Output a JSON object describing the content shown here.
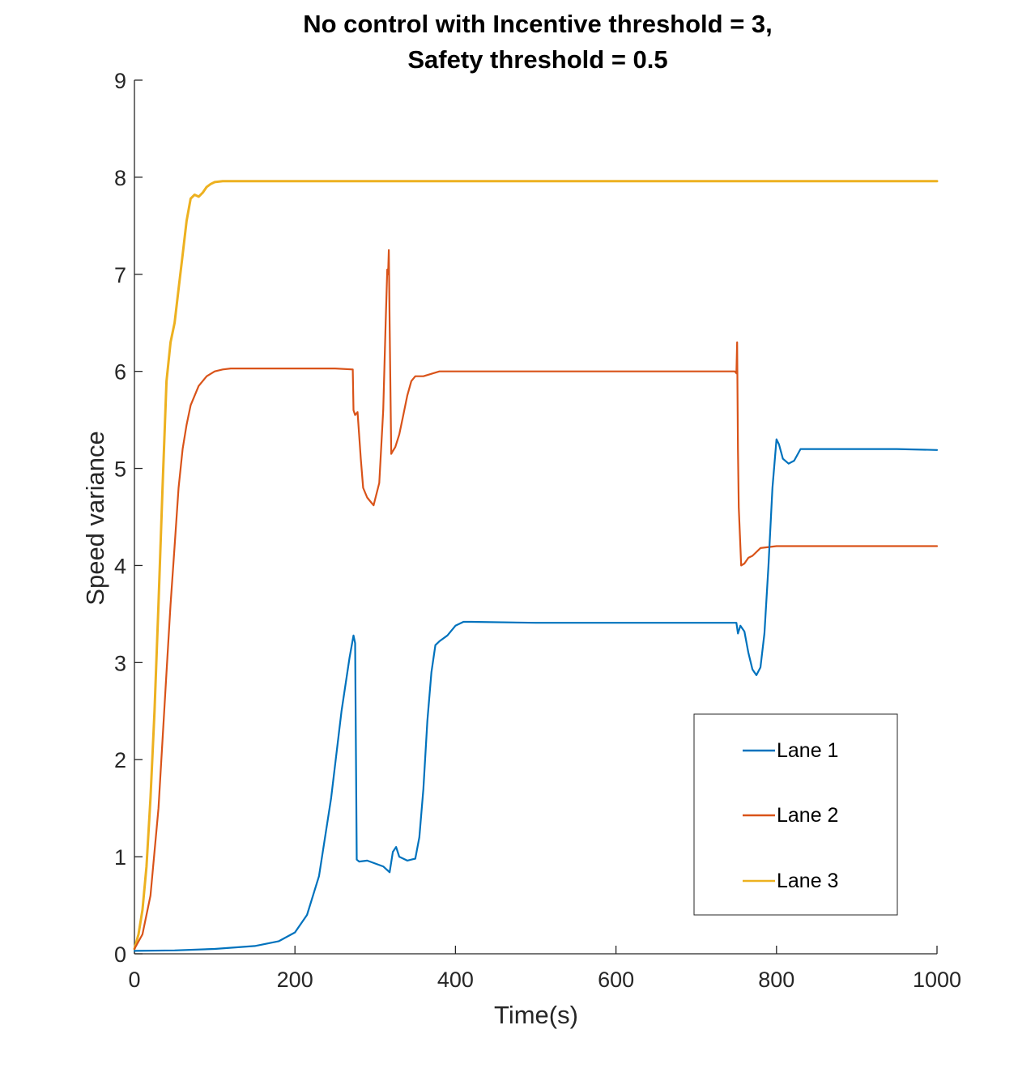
{
  "chart_data": {
    "type": "line",
    "title_line1": "No control with Incentive threshold = 3,",
    "title_line2": "Safety threshold = 0.5",
    "xlabel": "Time(s)",
    "ylabel": "Speed variance",
    "xlim": [
      0,
      1000
    ],
    "ylim": [
      0,
      9
    ],
    "xticks": [
      0,
      200,
      400,
      600,
      800,
      1000
    ],
    "yticks": [
      0,
      1,
      2,
      3,
      4,
      5,
      6,
      7,
      8,
      9
    ],
    "xtick_labels": [
      "0",
      "200",
      "400",
      "600",
      "800",
      "1000"
    ],
    "ytick_labels": [
      "0",
      "1",
      "2",
      "3",
      "4",
      "5",
      "6",
      "7",
      "8",
      "9"
    ],
    "grid": false,
    "legend_position": "bottom-right",
    "series": [
      {
        "name": "Lane 1",
        "color": "#0072BD",
        "x": [
          0,
          50,
          100,
          150,
          180,
          200,
          215,
          230,
          245,
          258,
          268,
          273,
          275,
          277,
          280,
          290,
          300,
          310,
          318,
          322,
          326,
          330,
          340,
          350,
          355,
          360,
          365,
          370,
          375,
          380,
          390,
          400,
          410,
          420,
          500,
          600,
          700,
          750,
          752,
          755,
          760,
          765,
          770,
          775,
          780,
          785,
          790,
          795,
          798,
          800,
          803,
          808,
          815,
          822,
          830,
          850,
          900,
          950,
          1000
        ],
        "y": [
          0.03,
          0.035,
          0.05,
          0.08,
          0.13,
          0.22,
          0.4,
          0.8,
          1.6,
          2.5,
          3.05,
          3.28,
          3.2,
          0.97,
          0.95,
          0.96,
          0.93,
          0.9,
          0.84,
          1.05,
          1.1,
          1.0,
          0.96,
          0.98,
          1.2,
          1.7,
          2.4,
          2.9,
          3.18,
          3.22,
          3.28,
          3.38,
          3.42,
          3.42,
          3.41,
          3.41,
          3.41,
          3.41,
          3.3,
          3.38,
          3.32,
          3.1,
          2.93,
          2.87,
          2.95,
          3.3,
          4.0,
          4.8,
          5.1,
          5.3,
          5.25,
          5.1,
          5.05,
          5.08,
          5.2,
          5.2,
          5.2,
          5.2,
          5.19
        ]
      },
      {
        "name": "Lane 2",
        "color": "#D95319",
        "x": [
          0,
          10,
          20,
          30,
          40,
          45,
          50,
          55,
          60,
          65,
          70,
          80,
          90,
          100,
          110,
          120,
          150,
          200,
          250,
          272,
          273,
          275,
          278,
          282,
          285,
          290,
          295,
          298,
          305,
          310,
          313,
          315,
          316,
          317,
          318,
          320,
          322,
          325,
          330,
          335,
          340,
          345,
          350,
          360,
          380,
          400,
          500,
          600,
          700,
          748,
          750,
          751,
          752,
          753,
          756,
          760,
          765,
          770,
          780,
          800,
          900,
          1000
        ],
        "y": [
          0.05,
          0.2,
          0.6,
          1.5,
          2.9,
          3.6,
          4.2,
          4.8,
          5.2,
          5.45,
          5.65,
          5.85,
          5.95,
          6.0,
          6.02,
          6.03,
          6.03,
          6.03,
          6.03,
          6.02,
          5.6,
          5.55,
          5.58,
          5.1,
          4.8,
          4.7,
          4.65,
          4.62,
          4.85,
          5.6,
          6.5,
          7.05,
          7.0,
          7.25,
          6.5,
          5.15,
          5.18,
          5.22,
          5.35,
          5.55,
          5.75,
          5.9,
          5.95,
          5.95,
          6.0,
          6.0,
          6.0,
          6.0,
          6.0,
          6.0,
          5.98,
          6.3,
          5.2,
          4.6,
          4.0,
          4.02,
          4.08,
          4.1,
          4.18,
          4.2,
          4.2,
          4.2
        ]
      },
      {
        "name": "Lane 3",
        "color": "#EDB120",
        "x": [
          0,
          5,
          10,
          15,
          20,
          25,
          30,
          35,
          40,
          45,
          50,
          55,
          60,
          65,
          70,
          75,
          80,
          85,
          90,
          95,
          100,
          110,
          120,
          150,
          200,
          300,
          400,
          500,
          600,
          700,
          800,
          900,
          1000
        ],
        "y": [
          0.05,
          0.2,
          0.45,
          0.9,
          1.6,
          2.5,
          3.6,
          4.8,
          5.9,
          6.3,
          6.5,
          6.85,
          7.2,
          7.55,
          7.78,
          7.82,
          7.8,
          7.84,
          7.9,
          7.93,
          7.95,
          7.96,
          7.96,
          7.96,
          7.96,
          7.96,
          7.96,
          7.96,
          7.96,
          7.96,
          7.96,
          7.96,
          7.96
        ]
      }
    ]
  }
}
